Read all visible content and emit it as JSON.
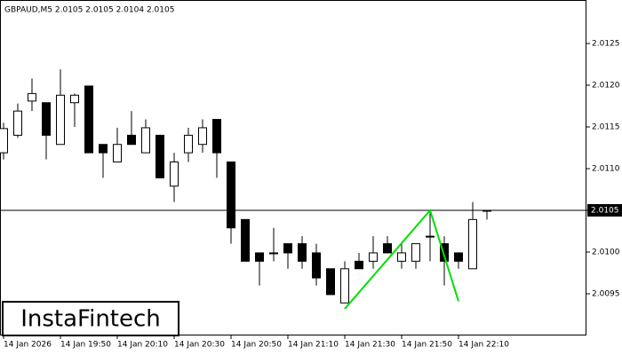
{
  "chart_data": {
    "type": "candlestick",
    "title": "GBPAUD,M5  2.0105 2.0105 2.0104 2.0105",
    "watermark": "InstaFintech",
    "categories": [
      "14 Jan 2026",
      null,
      null,
      null,
      "14 Jan 19:50",
      null,
      null,
      null,
      "14 Jan 20:10",
      null,
      null,
      null,
      "14 Jan 20:30",
      null,
      null,
      null,
      "14 Jan 20:50",
      null,
      null,
      null,
      "14 Jan 21:10",
      null,
      null,
      null,
      "14 Jan 21:30",
      null,
      null,
      null,
      "14 Jan 21:50",
      null,
      null,
      null,
      "14 Jan 22:10",
      null,
      null
    ],
    "open": [
      2.01119,
      2.0114,
      2.01181,
      2.01179,
      2.01129,
      2.01179,
      2.01199,
      2.01129,
      2.01108,
      2.0114,
      2.01119,
      2.0114,
      2.01079,
      2.01119,
      2.01129,
      2.01159,
      2.01108,
      2.01039,
      2.00999,
      2.00999,
      2.0101,
      2.0101,
      2.00999,
      2.0098,
      2.00939,
      2.00989,
      2.00989,
      2.0101,
      2.00989,
      2.00989,
      2.01019,
      2.0101,
      2.00999,
      2.0098,
      2.01049
    ],
    "high": [
      2.01155,
      2.01178,
      2.01208,
      2.01179,
      2.01219,
      2.0119,
      2.01199,
      2.01129,
      2.01149,
      2.01169,
      2.01159,
      2.0114,
      2.01119,
      2.01149,
      2.01159,
      2.01159,
      2.01108,
      2.01039,
      2.00999,
      2.01029,
      2.0101,
      2.01019,
      2.0101,
      2.0098,
      2.00989,
      2.00999,
      2.01019,
      2.01019,
      2.0101,
      2.0101,
      2.01049,
      2.01019,
      2.00999,
      2.0106,
      2.0105
    ],
    "low": [
      2.01111,
      2.01137,
      2.01169,
      2.01111,
      2.01129,
      2.0115,
      2.01119,
      2.01089,
      2.01108,
      2.01129,
      2.01119,
      2.01089,
      2.0106,
      2.01108,
      2.01119,
      2.01089,
      2.0101,
      2.00989,
      2.0096,
      2.00989,
      2.0098,
      2.0098,
      2.0096,
      2.00949,
      2.00939,
      2.0098,
      2.0098,
      2.00999,
      2.0098,
      2.0098,
      2.00989,
      2.0096,
      2.0098,
      2.0098,
      2.01039
    ],
    "close": [
      2.01148,
      2.01169,
      2.0119,
      2.0114,
      2.01188,
      2.01188,
      2.01119,
      2.01119,
      2.01129,
      2.01129,
      2.01149,
      2.01089,
      2.01108,
      2.0114,
      2.01149,
      2.01119,
      2.01029,
      2.00989,
      2.00989,
      2.00999,
      2.00999,
      2.00989,
      2.00969,
      2.00949,
      2.0098,
      2.0098,
      2.00999,
      2.00999,
      2.00999,
      2.0101,
      2.01019,
      2.00989,
      2.00989,
      2.01039,
      2.0105
    ],
    "pattern": {
      "color": "#00e000",
      "x": [
        24,
        30,
        32
      ],
      "values": [
        2.00932,
        2.0105,
        2.00941
      ]
    },
    "current_price": 2.0105,
    "ylim": [
      2.009,
      2.013
    ],
    "yticks": [
      2.0095,
      {
        "value": 2.01,
        "label": "2.0100"
      },
      2.0105,
      {
        "value": 2.011,
        "label": "2.0110"
      },
      2.0115,
      {
        "value": 2.012,
        "label": "2.0120"
      },
      2.0125
    ]
  }
}
